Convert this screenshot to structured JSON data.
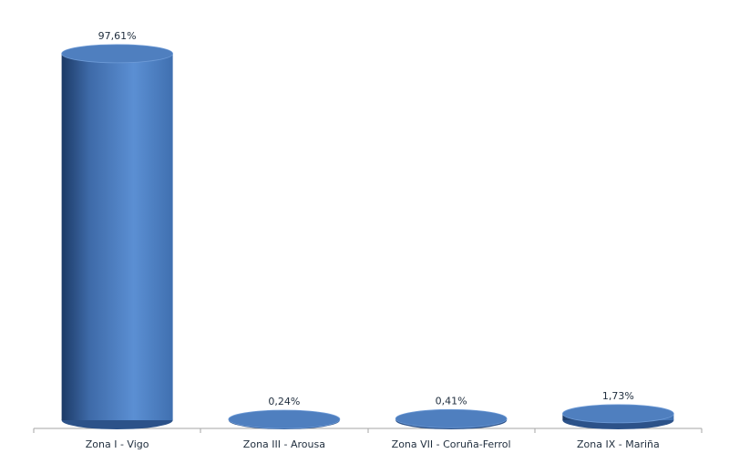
{
  "chart_data": {
    "type": "cylinder",
    "categories": [
      "Zona I - Vigo",
      "Zona III - Arousa",
      "Zona VII - Coruña-Ferrol",
      "Zona IX - Mariña"
    ],
    "values": [
      97.61,
      0.24,
      0.41,
      1.73
    ],
    "value_labels": [
      "97,61%",
      "0,24%",
      "0,41%",
      "1,73%"
    ],
    "color": "#4f81bd"
  }
}
